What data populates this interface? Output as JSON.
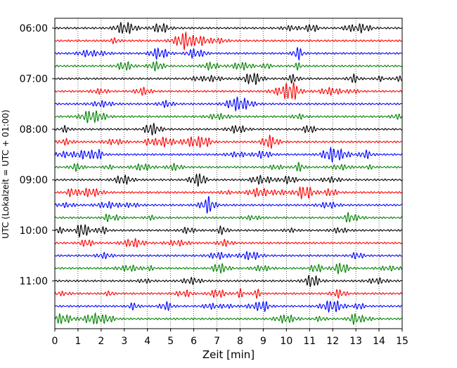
{
  "chart_data": {
    "type": "line",
    "title": "",
    "xlabel": "Zeit  [min]",
    "ylabel": "UTC (Lokalzeit = UTC + 01:00)",
    "xlim": [
      0,
      15
    ],
    "x_ticks": [
      0,
      1,
      2,
      3,
      4,
      5,
      6,
      7,
      8,
      9,
      10,
      11,
      12,
      13,
      14,
      15
    ],
    "x_tick_labels": [
      "0",
      "1",
      "2",
      "3",
      "4",
      "5",
      "6",
      "7",
      "8",
      "9",
      "10",
      "11",
      "12",
      "13",
      "14",
      "15"
    ],
    "y_tick_labels": [
      "06:00",
      "07:00",
      "08:00",
      "09:00",
      "10:00",
      "11:00"
    ],
    "y_tick_trace_index": [
      0,
      4,
      8,
      12,
      16,
      20
    ],
    "minutes_per_trace": 15,
    "start_time": "06:00",
    "trace_count": 24,
    "trace_colors": [
      "#000000",
      "#ff0000",
      "#0000ff",
      "#008000"
    ],
    "grid": {
      "vertical_dotted": true
    },
    "legend": "none"
  }
}
